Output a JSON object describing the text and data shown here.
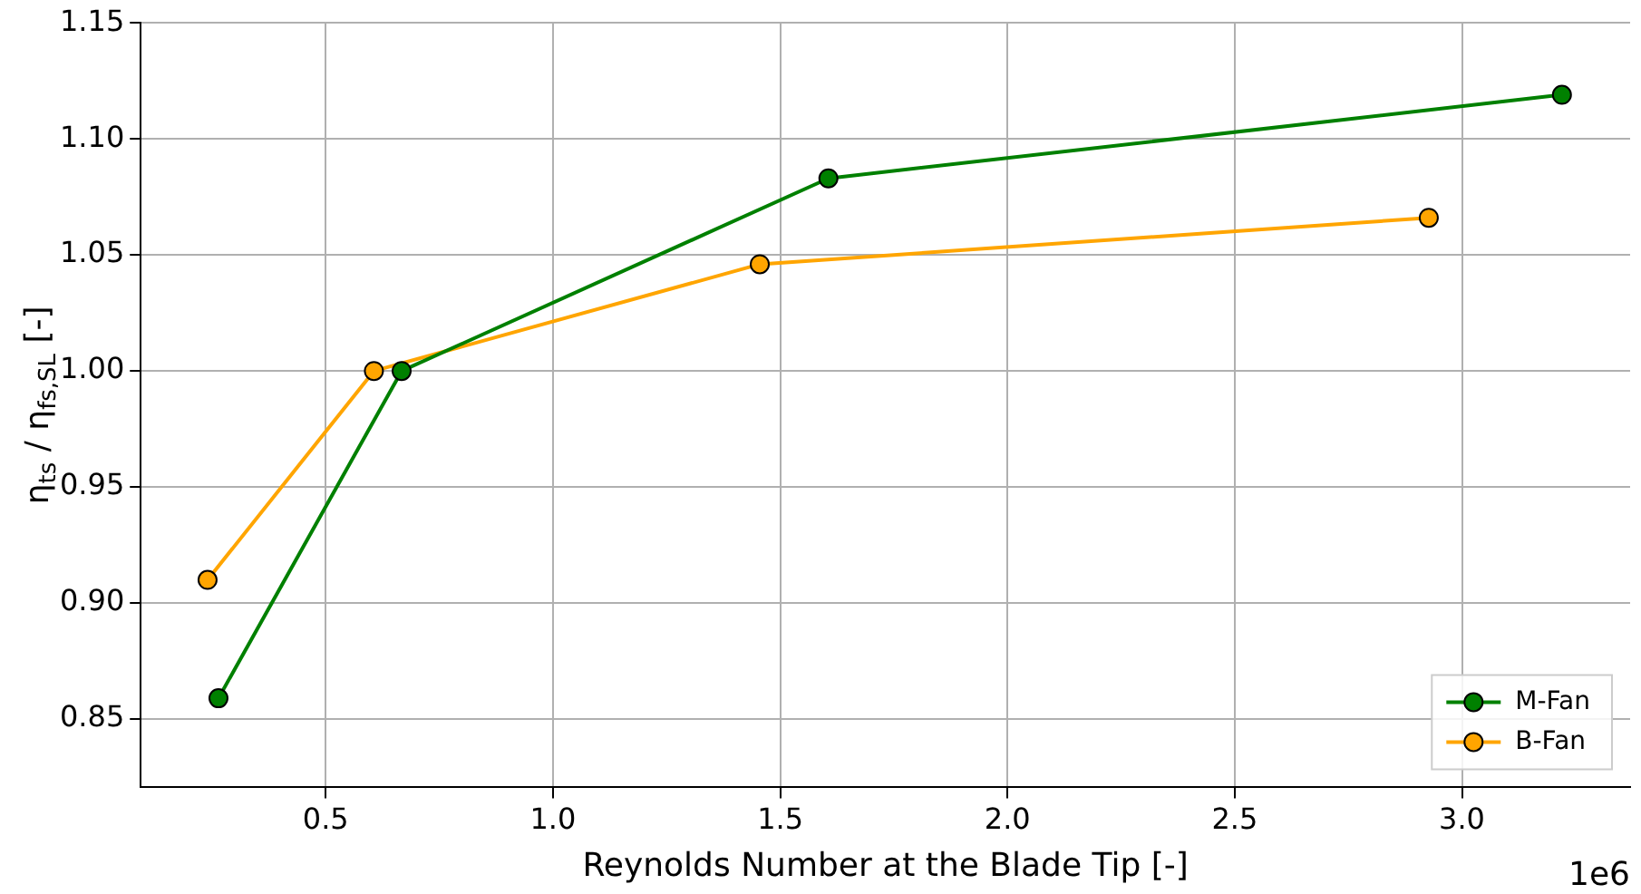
{
  "chart_data": {
    "type": "line",
    "xlabel": "Reynolds Number at the Blade Tip [-]",
    "ylabel": "η$_{ts}$ / η$_{fs,SL}$ [-]",
    "annotations": [
      "1e6"
    ],
    "xlim": [
      0.093,
      3.37
    ],
    "ylim": [
      0.8206,
      1.15
    ],
    "xticks": [
      0.5,
      {
        "value": 1.0,
        "label": "1.0"
      },
      1.5,
      {
        "value": 2.0,
        "label": "2.0"
      },
      2.5,
      {
        "value": 3.0,
        "label": "3.0"
      }
    ],
    "yticks": [
      {
        "value": 0.85,
        "label": "0.85"
      },
      {
        "value": 0.9,
        "label": "0.90"
      },
      {
        "value": 0.95,
        "label": "0.95"
      },
      {
        "value": 1.0,
        "label": "1.00"
      },
      {
        "value": 1.05,
        "label": "1.05"
      },
      {
        "value": 1.1,
        "label": "1.10"
      },
      {
        "value": 1.15,
        "label": "1.15"
      }
    ],
    "series": [
      {
        "name": "M-Fan",
        "color": "#008000",
        "x": [
          0.264,
          0.667,
          1.606,
          3.22
        ],
        "values": [
          0.859,
          1.0,
          1.083,
          1.119
        ]
      },
      {
        "name": "B-Fan",
        "color": "#ffa500",
        "x": [
          0.24,
          0.606,
          1.455,
          2.927
        ],
        "values": [
          0.91,
          1.0,
          1.046,
          1.066
        ]
      }
    ],
    "grid": true,
    "legend": "bottom right",
    "marker": "circle",
    "line_style": "solid"
  }
}
